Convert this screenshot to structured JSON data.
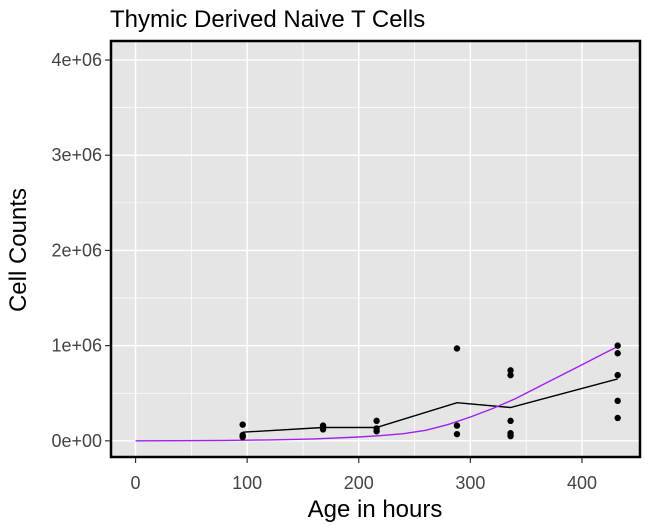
{
  "chart_data": {
    "type": "scatter",
    "title": "Thymic Derived Naive T Cells",
    "xlabel": "Age in hours",
    "ylabel": "Cell Counts",
    "xlim": [
      -22,
      452
    ],
    "ylim": [
      -170000,
      4200000
    ],
    "x_ticks": [
      0,
      100,
      200,
      300,
      400
    ],
    "x_tick_labels": [
      "0",
      "100",
      "200",
      "300",
      "400"
    ],
    "y_ticks": [
      0,
      1000000,
      2000000,
      3000000,
      4000000
    ],
    "y_tick_labels": [
      "0e+00",
      "1e+06",
      "2e+06",
      "3e+06",
      "4e+06"
    ],
    "grid": true,
    "panel_background": "#e5e5e5",
    "grid_color": "#ffffff",
    "series": [
      {
        "kind": "points",
        "color": "#000000",
        "points": [
          {
            "x": 96,
            "y": 170000
          },
          {
            "x": 96,
            "y": 60000
          },
          {
            "x": 96,
            "y": 40000
          },
          {
            "x": 168,
            "y": 160000
          },
          {
            "x": 168,
            "y": 140000
          },
          {
            "x": 168,
            "y": 120000
          },
          {
            "x": 216,
            "y": 210000
          },
          {
            "x": 216,
            "y": 130000
          },
          {
            "x": 216,
            "y": 100000
          },
          {
            "x": 288,
            "y": 970000
          },
          {
            "x": 288,
            "y": 160000
          },
          {
            "x": 288,
            "y": 70000
          },
          {
            "x": 336,
            "y": 740000
          },
          {
            "x": 336,
            "y": 690000
          },
          {
            "x": 336,
            "y": 210000
          },
          {
            "x": 336,
            "y": 80000
          },
          {
            "x": 336,
            "y": 50000
          },
          {
            "x": 432,
            "y": 1000000
          },
          {
            "x": 432,
            "y": 920000
          },
          {
            "x": 432,
            "y": 690000
          },
          {
            "x": 432,
            "y": 420000
          },
          {
            "x": 432,
            "y": 240000
          }
        ]
      },
      {
        "kind": "line",
        "color": "#000000",
        "x": [
          96,
          168,
          216,
          288,
          336,
          432
        ],
        "y": [
          90000,
          140000,
          140000,
          400000,
          350000,
          650000
        ]
      },
      {
        "kind": "line",
        "color": "#a020f0",
        "x": [
          0,
          40,
          80,
          120,
          160,
          200,
          220,
          240,
          260,
          280,
          300,
          320,
          340,
          360,
          380,
          400,
          420,
          432
        ],
        "y": [
          0,
          1000,
          4000,
          10000,
          20000,
          40000,
          55000,
          75000,
          110000,
          170000,
          250000,
          340000,
          440000,
          560000,
          680000,
          800000,
          920000,
          990000
        ]
      }
    ]
  }
}
